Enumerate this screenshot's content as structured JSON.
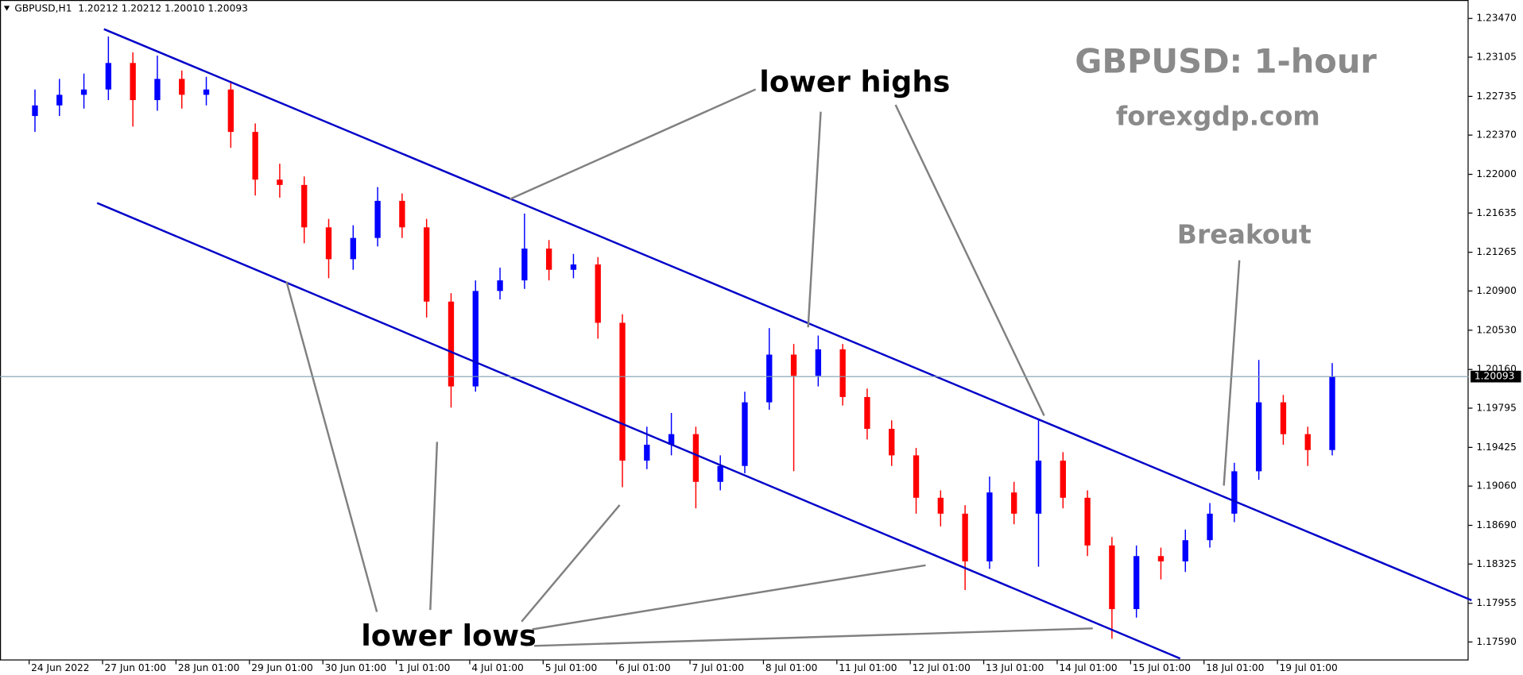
{
  "chart_data": {
    "type": "candlestick",
    "header": "GBPUSD,H1  1.20212 1.20212 1.20010 1.20093",
    "annotations": [
      "GBPUSD: 1-hour",
      "forexgdp.com",
      "lower highs",
      "Breakout",
      "lower lows"
    ],
    "categories": [
      "24 Jun 2022",
      null,
      null,
      "27 Jun 01:00",
      null,
      null,
      "28 Jun 01:00",
      null,
      null,
      "29 Jun 01:00",
      null,
      null,
      "30 Jun 01:00",
      null,
      null,
      "1 Jul 01:00",
      null,
      null,
      "4 Jul 01:00",
      null,
      null,
      "5 Jul 01:00",
      null,
      null,
      "6 Jul 01:00",
      null,
      null,
      "7 Jul 01:00",
      null,
      null,
      "8 Jul 01:00",
      null,
      null,
      "11 Jul 01:00",
      null,
      null,
      "12 Jul 01:00",
      null,
      null,
      "13 Jul 01:00",
      null,
      null,
      "14 Jul 01:00",
      null,
      null,
      "15 Jul 01:00",
      null,
      null,
      "18 Jul 01:00",
      null,
      null,
      "19 Jul 01:00",
      null,
      null
    ],
    "open": [
      1.2255,
      1.2265,
      1.2275,
      1.228,
      1.2305,
      1.227,
      1.229,
      1.2275,
      1.228,
      1.224,
      1.2195,
      1.219,
      1.215,
      1.212,
      1.214,
      1.2175,
      1.215,
      1.208,
      1.2,
      1.209,
      1.21,
      1.213,
      1.211,
      1.2115,
      1.206,
      1.193,
      1.1945,
      1.1955,
      1.191,
      1.1925,
      1.1985,
      1.203,
      1.201,
      1.2035,
      1.199,
      1.196,
      1.1935,
      1.1895,
      1.188,
      1.1835,
      1.19,
      1.188,
      1.193,
      1.1895,
      1.185,
      1.179,
      1.184,
      1.1835,
      1.1855,
      1.188,
      1.192,
      1.1985,
      1.1955,
      1.194
    ],
    "high": [
      1.228,
      1.229,
      1.2295,
      1.233,
      1.2315,
      1.2312,
      1.2298,
      1.2292,
      1.2288,
      1.2248,
      1.221,
      1.2198,
      1.2158,
      1.2152,
      1.2188,
      1.2182,
      1.2158,
      1.2088,
      1.21,
      1.2112,
      1.2163,
      1.2138,
      1.2125,
      1.2122,
      1.2068,
      1.1962,
      1.1975,
      1.1962,
      1.1935,
      1.1995,
      1.2055,
      1.204,
      1.2048,
      1.204,
      1.1998,
      1.1968,
      1.1942,
      1.1902,
      1.1888,
      1.1915,
      1.191,
      1.1968,
      1.1938,
      1.1902,
      1.1858,
      1.185,
      1.1848,
      1.1865,
      1.189,
      1.1928,
      1.2025,
      1.1992,
      1.1962,
      1.2022
    ],
    "low": [
      1.224,
      1.2255,
      1.2262,
      1.227,
      1.2245,
      1.226,
      1.2262,
      1.2265,
      1.2225,
      1.218,
      1.2178,
      1.2135,
      1.2102,
      1.211,
      1.2132,
      1.214,
      1.2065,
      1.198,
      1.1995,
      1.2082,
      1.2092,
      1.21,
      1.2102,
      1.2045,
      1.1905,
      1.1922,
      1.1935,
      1.1885,
      1.1902,
      1.1918,
      1.1978,
      1.192,
      1.2,
      1.1982,
      1.195,
      1.1925,
      1.188,
      1.1868,
      1.1808,
      1.1828,
      1.187,
      1.183,
      1.1885,
      1.184,
      1.1762,
      1.1782,
      1.1818,
      1.1825,
      1.1848,
      1.1872,
      1.1912,
      1.1945,
      1.1925,
      1.1935
    ],
    "close": [
      1.2265,
      1.2275,
      1.228,
      1.2305,
      1.227,
      1.229,
      1.2275,
      1.228,
      1.224,
      1.2195,
      1.219,
      1.215,
      1.212,
      1.214,
      1.2175,
      1.215,
      1.208,
      1.2,
      1.209,
      1.21,
      1.213,
      1.211,
      1.2115,
      1.206,
      1.193,
      1.1945,
      1.1955,
      1.191,
      1.1925,
      1.1985,
      1.203,
      1.201,
      1.2035,
      1.199,
      1.196,
      1.1935,
      1.1895,
      1.188,
      1.1835,
      1.19,
      1.188,
      1.193,
      1.1895,
      1.185,
      1.179,
      1.184,
      1.1835,
      1.1855,
      1.188,
      1.192,
      1.1985,
      1.1955,
      1.194,
      1.2009
    ],
    "up_color": "#0000ff",
    "down_color": "#ff0000",
    "current_price": 1.20093,
    "ylim": [
      1.17416,
      1.23644
    ],
    "yticks": [
      {
        "value": 1.2347,
        "label": "1.23470"
      },
      {
        "value": 1.23105,
        "label": "1.23105"
      },
      {
        "value": 1.22735,
        "label": "1.22735"
      },
      {
        "value": 1.2237,
        "label": "1.22370"
      },
      {
        "value": 1.22,
        "label": "1.22000"
      },
      {
        "value": 1.21635,
        "label": "1.21635"
      },
      {
        "value": 1.21265,
        "label": "1.21265"
      },
      {
        "value": 1.209,
        "label": "1.20900"
      },
      {
        "value": 1.2053,
        "label": "1.20530"
      },
      {
        "value": 1.2016,
        "label": "1.20160"
      },
      {
        "value": 1.19795,
        "label": "1.19795"
      },
      {
        "value": 1.19425,
        "label": "1.19425"
      },
      {
        "value": 1.1906,
        "label": "1.19060"
      },
      {
        "value": 1.1869,
        "label": "1.18690"
      },
      {
        "value": 1.18325,
        "label": "1.18325"
      },
      {
        "value": 1.17955,
        "label": "1.17955"
      },
      {
        "value": 1.1759,
        "label": "1.17590"
      }
    ],
    "grid": false
  }
}
